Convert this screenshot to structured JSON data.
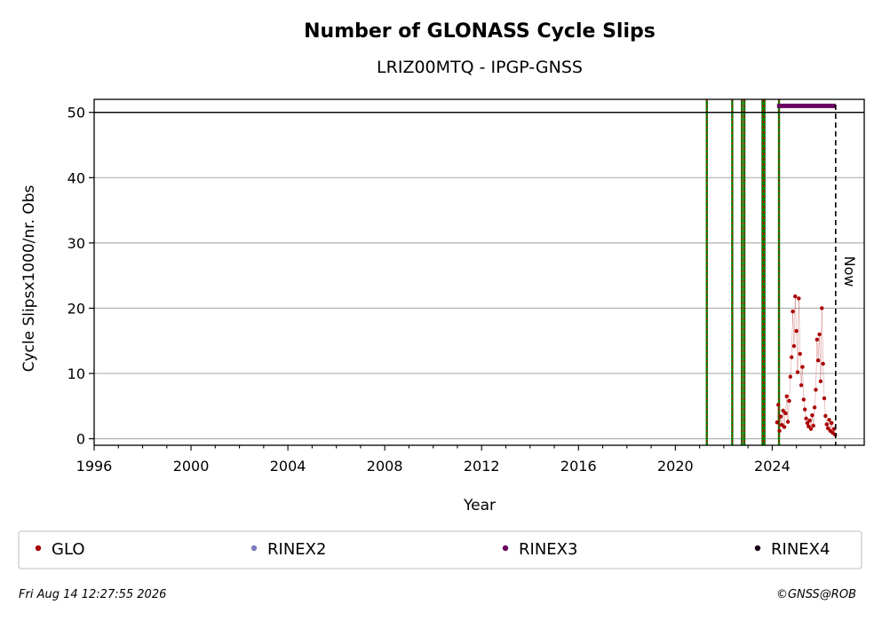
{
  "chart_data": {
    "type": "scatter",
    "title": "Number of GLONASS Cycle Slips",
    "subtitle": "LRIZ00MTQ - IPGP-GNSS",
    "xlabel": "Year",
    "ylabel": "Cycle Slipsx1000/nr. Obs",
    "xlim": [
      1996,
      2027.8
    ],
    "ylim": [
      -1,
      52
    ],
    "x_ticks": [
      1996,
      2000,
      2004,
      2008,
      2012,
      2016,
      2020,
      2024
    ],
    "y_ticks": [
      0,
      10,
      20,
      30,
      40,
      50
    ],
    "grid": "horizontal",
    "reference_line_y": 50,
    "now_label": "Now",
    "now_x": 2026.62,
    "event_lines_x": [
      2021.3,
      2022.35,
      2022.75,
      2022.85,
      2023.6,
      2023.68,
      2024.28
    ],
    "rinex3_span": {
      "x": [
        2024.2,
        2026.62
      ],
      "y": 51
    },
    "series": [
      {
        "name": "GLO",
        "color": "#aa0000",
        "points": [
          [
            2024.2,
            2.5
          ],
          [
            2024.25,
            5.2
          ],
          [
            2024.3,
            1.2
          ],
          [
            2024.35,
            3.4
          ],
          [
            2024.4,
            2.1
          ],
          [
            2024.45,
            4.3
          ],
          [
            2024.5,
            1.8
          ],
          [
            2024.55,
            3.9
          ],
          [
            2024.6,
            6.5
          ],
          [
            2024.65,
            2.6
          ],
          [
            2024.7,
            5.8
          ],
          [
            2024.75,
            9.5
          ],
          [
            2024.8,
            12.5
          ],
          [
            2024.85,
            19.5
          ],
          [
            2024.9,
            14.2
          ],
          [
            2024.95,
            21.8
          ],
          [
            2025.0,
            16.5
          ],
          [
            2025.05,
            10.2
          ],
          [
            2025.1,
            21.5
          ],
          [
            2025.15,
            13.0
          ],
          [
            2025.2,
            8.2
          ],
          [
            2025.25,
            11.0
          ],
          [
            2025.3,
            6.0
          ],
          [
            2025.35,
            4.5
          ],
          [
            2025.4,
            3.1
          ],
          [
            2025.45,
            2.4
          ],
          [
            2025.5,
            1.9
          ],
          [
            2025.55,
            2.8
          ],
          [
            2025.6,
            1.5
          ],
          [
            2025.65,
            3.6
          ],
          [
            2025.7,
            2.0
          ],
          [
            2025.75,
            4.8
          ],
          [
            2025.8,
            7.5
          ],
          [
            2025.85,
            15.2
          ],
          [
            2025.9,
            12.0
          ],
          [
            2025.95,
            16.0
          ],
          [
            2026.0,
            8.8
          ],
          [
            2026.05,
            20.0
          ],
          [
            2026.1,
            11.5
          ],
          [
            2026.15,
            6.2
          ],
          [
            2026.2,
            3.5
          ],
          [
            2026.25,
            2.2
          ],
          [
            2026.3,
            1.6
          ],
          [
            2026.35,
            2.9
          ],
          [
            2026.4,
            1.2
          ],
          [
            2026.45,
            2.4
          ],
          [
            2026.5,
            0.9
          ],
          [
            2026.55,
            1.5
          ],
          [
            2026.6,
            0.6
          ]
        ]
      }
    ],
    "legend": [
      "GLO",
      "RINEX2",
      "RINEX3",
      "RINEX4"
    ],
    "legend_colors": [
      "#aa0000",
      "#7b7bbd",
      "#6a0060",
      "#1a0018"
    ],
    "legend_position": "bottom"
  },
  "footer": {
    "timestamp": "Fri Aug 14 12:27:55 2026",
    "credit": "©GNSS@ROB"
  }
}
